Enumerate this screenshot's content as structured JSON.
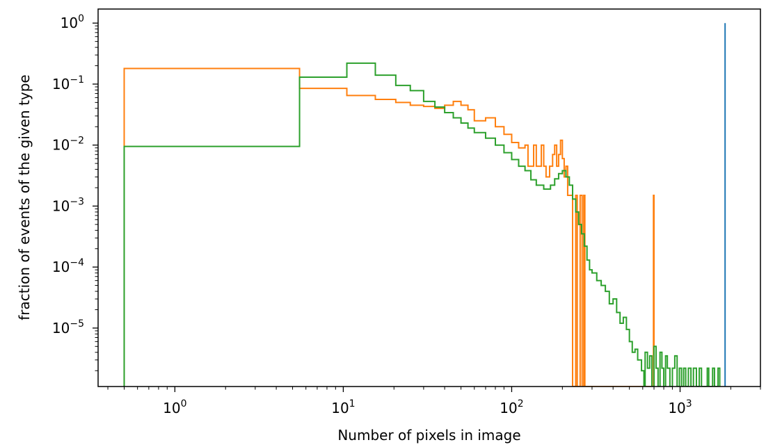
{
  "chart_data": {
    "type": "histogram",
    "title": "",
    "xlabel": "Number of pixels in image",
    "ylabel": "fraction of events of the given type",
    "xscale": "log",
    "yscale": "log",
    "xlim": [
      0.35,
      3000
    ],
    "ylim": [
      1.1e-06,
      1.7
    ],
    "grid": false,
    "legend": "none",
    "x_ticks": [
      {
        "value": 1,
        "base": "10",
        "exp": "0"
      },
      {
        "value": 10,
        "base": "10",
        "exp": "1"
      },
      {
        "value": 100,
        "base": "10",
        "exp": "2"
      },
      {
        "value": 1000,
        "base": "10",
        "exp": "3"
      }
    ],
    "y_ticks": [
      {
        "value": 1,
        "base": "10",
        "exp": "0"
      },
      {
        "value": 0.1,
        "base": "10",
        "exp": "−1"
      },
      {
        "value": 0.01,
        "base": "10",
        "exp": "−2"
      },
      {
        "value": 0.001,
        "base": "10",
        "exp": "−3"
      },
      {
        "value": 0.0001,
        "base": "10",
        "exp": "−4"
      },
      {
        "value": 1e-05,
        "base": "10",
        "exp": "−5"
      }
    ],
    "series": [
      {
        "color": "#1f77b4",
        "steps": [
          [
            1850,
            1.0
          ],
          [
            1850,
            1.1e-06
          ]
        ]
      },
      {
        "color": "#ff7f0e",
        "steps": [
          [
            0.5,
            1.1e-06
          ],
          [
            0.5,
            0.18
          ],
          [
            5.5,
            0.18
          ],
          [
            5.5,
            0.085
          ],
          [
            10.5,
            0.085
          ],
          [
            10.5,
            0.065
          ],
          [
            15.5,
            0.065
          ],
          [
            15.5,
            0.056
          ],
          [
            20.5,
            0.056
          ],
          [
            20.5,
            0.05
          ],
          [
            25,
            0.05
          ],
          [
            25,
            0.045
          ],
          [
            30,
            0.045
          ],
          [
            30,
            0.043
          ],
          [
            35,
            0.043
          ],
          [
            35,
            0.04
          ],
          [
            40,
            0.04
          ],
          [
            40,
            0.045
          ],
          [
            45,
            0.045
          ],
          [
            45,
            0.052
          ],
          [
            50,
            0.052
          ],
          [
            50,
            0.045
          ],
          [
            55,
            0.045
          ],
          [
            55,
            0.038
          ],
          [
            60,
            0.038
          ],
          [
            60,
            0.025
          ],
          [
            70,
            0.025
          ],
          [
            70,
            0.028
          ],
          [
            80,
            0.028
          ],
          [
            80,
            0.02
          ],
          [
            90,
            0.02
          ],
          [
            90,
            0.015
          ],
          [
            100,
            0.015
          ],
          [
            100,
            0.011
          ],
          [
            110,
            0.011
          ],
          [
            110,
            0.009
          ],
          [
            120,
            0.009
          ],
          [
            120,
            0.01
          ],
          [
            125,
            0.01
          ],
          [
            125,
            0.0045
          ],
          [
            135,
            0.0045
          ],
          [
            135,
            0.01
          ],
          [
            140,
            0.01
          ],
          [
            140,
            0.0045
          ],
          [
            150,
            0.0045
          ],
          [
            150,
            0.01
          ],
          [
            155,
            0.01
          ],
          [
            155,
            0.0045
          ],
          [
            160,
            0.0045
          ],
          [
            160,
            0.003
          ],
          [
            168,
            0.003
          ],
          [
            168,
            0.0045
          ],
          [
            175,
            0.0045
          ],
          [
            175,
            0.007
          ],
          [
            180,
            0.007
          ],
          [
            180,
            0.01
          ],
          [
            185,
            0.01
          ],
          [
            185,
            0.0045
          ],
          [
            190,
            0.0045
          ],
          [
            190,
            0.007
          ],
          [
            195,
            0.007
          ],
          [
            195,
            0.012
          ],
          [
            200,
            0.012
          ],
          [
            200,
            0.006
          ],
          [
            205,
            0.006
          ],
          [
            205,
            0.003
          ],
          [
            210,
            0.003
          ],
          [
            210,
            0.0045
          ],
          [
            215,
            0.0045
          ],
          [
            215,
            0.0015
          ],
          [
            230,
            0.0015
          ],
          [
            230,
            1.1e-06
          ],
          [
            240,
            1.1e-06
          ],
          [
            240,
            0.0015
          ],
          [
            245,
            0.0015
          ],
          [
            245,
            1.1e-06
          ],
          [
            255,
            1.1e-06
          ],
          [
            255,
            0.0015
          ],
          [
            262,
            0.0015
          ],
          [
            262,
            1.1e-06
          ],
          [
            268,
            1.1e-06
          ],
          [
            268,
            0.0015
          ],
          [
            272,
            0.0015
          ],
          [
            272,
            1.1e-06
          ],
          [
            695,
            1.1e-06
          ],
          [
            695,
            0.0015
          ],
          [
            700,
            0.0015
          ],
          [
            700,
            1.1e-06
          ]
        ]
      },
      {
        "color": "#2ca02c",
        "steps": [
          [
            0.5,
            1.1e-06
          ],
          [
            0.5,
            0.0095
          ],
          [
            5.5,
            0.0095
          ],
          [
            5.5,
            0.13
          ],
          [
            10.5,
            0.13
          ],
          [
            10.5,
            0.22
          ],
          [
            15.5,
            0.22
          ],
          [
            15.5,
            0.14
          ],
          [
            20.5,
            0.14
          ],
          [
            20.5,
            0.095
          ],
          [
            25,
            0.095
          ],
          [
            25,
            0.078
          ],
          [
            30,
            0.078
          ],
          [
            30,
            0.052
          ],
          [
            35,
            0.052
          ],
          [
            35,
            0.042
          ],
          [
            40,
            0.042
          ],
          [
            40,
            0.034
          ],
          [
            45,
            0.034
          ],
          [
            45,
            0.028
          ],
          [
            50,
            0.028
          ],
          [
            50,
            0.023
          ],
          [
            55,
            0.023
          ],
          [
            55,
            0.019
          ],
          [
            60,
            0.019
          ],
          [
            60,
            0.016
          ],
          [
            70,
            0.016
          ],
          [
            70,
            0.013
          ],
          [
            80,
            0.013
          ],
          [
            80,
            0.01
          ],
          [
            90,
            0.01
          ],
          [
            90,
            0.0075
          ],
          [
            100,
            0.0075
          ],
          [
            100,
            0.0058
          ],
          [
            110,
            0.0058
          ],
          [
            110,
            0.0045
          ],
          [
            120,
            0.0045
          ],
          [
            120,
            0.0038
          ],
          [
            130,
            0.0038
          ],
          [
            130,
            0.0027
          ],
          [
            140,
            0.0027
          ],
          [
            140,
            0.0022
          ],
          [
            155,
            0.0022
          ],
          [
            155,
            0.0019
          ],
          [
            170,
            0.0019
          ],
          [
            170,
            0.0022
          ],
          [
            180,
            0.0022
          ],
          [
            180,
            0.0028
          ],
          [
            190,
            0.0028
          ],
          [
            190,
            0.0034
          ],
          [
            200,
            0.0034
          ],
          [
            200,
            0.0038
          ],
          [
            210,
            0.0038
          ],
          [
            210,
            0.003
          ],
          [
            220,
            0.003
          ],
          [
            220,
            0.0022
          ],
          [
            230,
            0.0022
          ],
          [
            230,
            0.0013
          ],
          [
            240,
            0.0013
          ],
          [
            240,
            0.0008
          ],
          [
            250,
            0.0008
          ],
          [
            250,
            0.0005
          ],
          [
            260,
            0.0005
          ],
          [
            260,
            0.00035
          ],
          [
            270,
            0.00035
          ],
          [
            270,
            0.00022
          ],
          [
            280,
            0.00022
          ],
          [
            280,
            0.00013
          ],
          [
            290,
            0.00013
          ],
          [
            290,
            9e-05
          ],
          [
            300,
            9e-05
          ],
          [
            300,
            8e-05
          ],
          [
            320,
            8e-05
          ],
          [
            320,
            6e-05
          ],
          [
            340,
            6e-05
          ],
          [
            340,
            5e-05
          ],
          [
            360,
            5e-05
          ],
          [
            360,
            4e-05
          ],
          [
            380,
            4e-05
          ],
          [
            380,
            2.5e-05
          ],
          [
            400,
            2.5e-05
          ],
          [
            400,
            3e-05
          ],
          [
            420,
            3e-05
          ],
          [
            420,
            1.8e-05
          ],
          [
            440,
            1.8e-05
          ],
          [
            440,
            1.2e-05
          ],
          [
            460,
            1.2e-05
          ],
          [
            460,
            1.5e-05
          ],
          [
            480,
            1.5e-05
          ],
          [
            480,
            9.5e-06
          ],
          [
            500,
            9.5e-06
          ],
          [
            500,
            6e-06
          ],
          [
            520,
            6e-06
          ],
          [
            520,
            4e-06
          ],
          [
            540,
            4e-06
          ],
          [
            540,
            4.5e-06
          ],
          [
            560,
            4.5e-06
          ],
          [
            560,
            3e-06
          ],
          [
            590,
            3e-06
          ],
          [
            590,
            2e-06
          ],
          [
            610,
            2e-06
          ],
          [
            610,
            1.1e-06
          ],
          [
            620,
            1.1e-06
          ],
          [
            620,
            4e-06
          ],
          [
            640,
            4e-06
          ],
          [
            640,
            2.2e-06
          ],
          [
            660,
            2.2e-06
          ],
          [
            660,
            3.5e-06
          ],
          [
            680,
            3.5e-06
          ],
          [
            680,
            1.1e-06
          ],
          [
            700,
            1.1e-06
          ],
          [
            700,
            5e-06
          ],
          [
            720,
            5e-06
          ],
          [
            720,
            2.2e-06
          ],
          [
            740,
            2.2e-06
          ],
          [
            740,
            1.1e-06
          ],
          [
            760,
            1.1e-06
          ],
          [
            760,
            4e-06
          ],
          [
            780,
            4e-06
          ],
          [
            780,
            2.2e-06
          ],
          [
            800,
            2.2e-06
          ],
          [
            800,
            1.1e-06
          ],
          [
            820,
            1.1e-06
          ],
          [
            820,
            3.5e-06
          ],
          [
            840,
            3.5e-06
          ],
          [
            840,
            2.2e-06
          ],
          [
            870,
            2.2e-06
          ],
          [
            870,
            1.1e-06
          ],
          [
            900,
            1.1e-06
          ],
          [
            900,
            2.2e-06
          ],
          [
            930,
            2.2e-06
          ],
          [
            930,
            3.5e-06
          ],
          [
            960,
            3.5e-06
          ],
          [
            960,
            1.1e-06
          ],
          [
            990,
            1.1e-06
          ],
          [
            990,
            2.2e-06
          ],
          [
            1020,
            2.2e-06
          ],
          [
            1020,
            1.1e-06
          ],
          [
            1050,
            1.1e-06
          ],
          [
            1050,
            2.2e-06
          ],
          [
            1080,
            2.2e-06
          ],
          [
            1080,
            1.1e-06
          ],
          [
            1120,
            1.1e-06
          ],
          [
            1120,
            2.2e-06
          ],
          [
            1160,
            2.2e-06
          ],
          [
            1160,
            1.1e-06
          ],
          [
            1200,
            1.1e-06
          ],
          [
            1200,
            2.2e-06
          ],
          [
            1250,
            2.2e-06
          ],
          [
            1250,
            1.1e-06
          ],
          [
            1300,
            1.1e-06
          ],
          [
            1300,
            2.2e-06
          ],
          [
            1340,
            2.2e-06
          ],
          [
            1340,
            1.1e-06
          ],
          [
            1450,
            1.1e-06
          ],
          [
            1450,
            2.2e-06
          ],
          [
            1480,
            2.2e-06
          ],
          [
            1480,
            1.1e-06
          ],
          [
            1560,
            1.1e-06
          ],
          [
            1560,
            2.2e-06
          ],
          [
            1600,
            2.2e-06
          ],
          [
            1600,
            1.1e-06
          ],
          [
            1680,
            1.1e-06
          ],
          [
            1680,
            2.2e-06
          ],
          [
            1720,
            2.2e-06
          ],
          [
            1720,
            1.1e-06
          ]
        ]
      }
    ]
  }
}
